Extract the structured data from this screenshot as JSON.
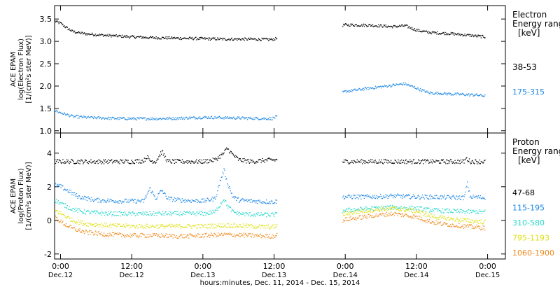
{
  "figure": {
    "xlabel": "hours:minutes, Dec. 11, 2014 - Dec. 15, 2014",
    "x_ticks": [
      {
        "time": "0:00",
        "date": "Dec.12",
        "hour": 0
      },
      {
        "time": "12:00",
        "date": "Dec.12",
        "hour": 12
      },
      {
        "time": "0:00",
        "date": "Dec.13",
        "hour": 24
      },
      {
        "time": "12:00",
        "date": "Dec.13",
        "hour": 36
      },
      {
        "time": "0:00",
        "date": "Dec.14",
        "hour": 48
      },
      {
        "time": "12:00",
        "date": "Dec.14",
        "hour": 60
      },
      {
        "time": "0:00",
        "date": "Dec.15",
        "hour": 72
      }
    ]
  },
  "chart_data": [
    {
      "type": "scatter",
      "panel": "electron",
      "ylabel_lines": [
        "ACE EPAM",
        "log(Electron Flux)",
        "[1/(cm²s ster MeV)]"
      ],
      "legend_title_lines": [
        "Electron",
        "Energy range",
        "[keV]"
      ],
      "x_unit": "hours since Dec.12 0:00",
      "xlim": [
        -1,
        75
      ],
      "ylim": [
        0.95,
        3.8
      ],
      "y_ticks": [
        "1.0",
        "1.5",
        "2.0",
        "2.5",
        "3.0",
        "3.5"
      ],
      "y_tick_values": [
        1.0,
        1.5,
        2.0,
        2.5,
        3.0,
        3.5
      ],
      "series": [
        {
          "name": "38-53",
          "color": "#000000",
          "x": [
            -1,
            0,
            1,
            2,
            4,
            8,
            12,
            16,
            20,
            24,
            28,
            32,
            35.5,
            48,
            52,
            56,
            58,
            60,
            62,
            66,
            70,
            71.5
          ],
          "y": [
            3.45,
            3.4,
            3.3,
            3.22,
            3.17,
            3.13,
            3.1,
            3.08,
            3.07,
            3.06,
            3.05,
            3.05,
            3.04,
            3.37,
            3.36,
            3.33,
            3.35,
            3.25,
            3.2,
            3.17,
            3.12,
            3.1
          ]
        },
        {
          "name": "175-315",
          "color": "#1e88e5",
          "x": [
            -1,
            0,
            2,
            4,
            8,
            12,
            16,
            20,
            24,
            28,
            32,
            35.5,
            48,
            52,
            56,
            58,
            60,
            62,
            66,
            70,
            71.5
          ],
          "y": [
            1.45,
            1.4,
            1.32,
            1.3,
            1.28,
            1.27,
            1.27,
            1.28,
            1.3,
            1.29,
            1.28,
            1.27,
            1.88,
            1.95,
            2.02,
            2.05,
            1.95,
            1.85,
            1.82,
            1.8,
            1.78
          ]
        }
      ]
    },
    {
      "type": "scatter",
      "panel": "proton",
      "ylabel_lines": [
        "ACE EPAM",
        "log(Proton Flux)",
        "[1/(cm²s ster MeV)]"
      ],
      "legend_title_lines": [
        "Proton",
        "Energy range",
        "[keV]"
      ],
      "x_unit": "hours since Dec.12 0:00",
      "xlim": [
        -1,
        75
      ],
      "ylim": [
        -2.3,
        5.2
      ],
      "y_ticks": [
        "-2",
        "0",
        "2",
        "4"
      ],
      "y_tick_values": [
        -2,
        0,
        2,
        4
      ],
      "series": [
        {
          "name": "47-68",
          "color": "#000000",
          "x": [
            -1,
            4,
            8,
            12,
            14,
            14.5,
            15,
            16,
            17,
            18,
            20,
            24,
            26,
            27.5,
            28,
            29,
            30,
            32,
            35.5,
            48,
            56,
            64,
            68,
            68.3,
            69,
            71.5
          ],
          "y": [
            3.5,
            3.5,
            3.5,
            3.5,
            3.55,
            3.8,
            3.55,
            3.5,
            4.1,
            3.5,
            3.5,
            3.5,
            3.6,
            4.0,
            4.3,
            3.9,
            3.6,
            3.5,
            3.6,
            3.5,
            3.5,
            3.5,
            3.5,
            3.7,
            3.5,
            3.5
          ]
        },
        {
          "name": "115-195",
          "color": "#1e88e5",
          "x": [
            -1,
            0,
            1,
            3,
            6,
            10,
            14,
            15,
            16,
            17,
            18,
            20,
            24,
            26,
            27,
            27.5,
            28,
            29,
            30,
            32,
            35.5,
            48,
            52,
            56,
            60,
            64,
            68,
            68.5,
            69,
            71.5
          ],
          "y": [
            2.1,
            2.0,
            1.8,
            1.4,
            1.2,
            1.15,
            1.15,
            1.9,
            1.3,
            1.8,
            1.3,
            1.2,
            1.15,
            1.3,
            2.5,
            3.0,
            2.3,
            1.4,
            1.2,
            1.15,
            1.1,
            1.4,
            1.4,
            1.45,
            1.4,
            1.38,
            1.35,
            2.2,
            1.4,
            1.35
          ]
        },
        {
          "name": "310-580",
          "color": "#26d9cc",
          "x": [
            -1,
            0,
            2,
            4,
            8,
            12,
            16,
            20,
            24,
            26,
            27.5,
            28,
            29,
            30,
            32,
            35.5,
            48,
            52,
            56,
            60,
            62,
            64,
            68,
            71.5
          ],
          "y": [
            1.2,
            1.0,
            0.65,
            0.5,
            0.4,
            0.38,
            0.4,
            0.4,
            0.4,
            0.5,
            1.3,
            0.9,
            0.5,
            0.4,
            0.35,
            0.33,
            0.6,
            0.7,
            0.78,
            0.72,
            0.62,
            0.58,
            0.52,
            0.5
          ]
        },
        {
          "name": "795-1193",
          "color": "#dede10",
          "x": [
            -1,
            0,
            2,
            4,
            8,
            12,
            16,
            20,
            24,
            28,
            32,
            35.5,
            48,
            52,
            56,
            60,
            62,
            64,
            68,
            71.5
          ],
          "y": [
            0.6,
            0.4,
            0.0,
            -0.2,
            -0.3,
            -0.35,
            -0.35,
            -0.35,
            -0.35,
            -0.3,
            -0.35,
            -0.4,
            0.4,
            0.6,
            0.7,
            0.55,
            0.3,
            0.15,
            0.0,
            -0.1
          ]
        },
        {
          "name": "1060-1900",
          "color": "#ef8a1c",
          "x": [
            -1,
            0,
            2,
            4,
            8,
            12,
            16,
            20,
            24,
            28,
            32,
            35.5,
            48,
            52,
            56,
            60,
            62,
            64,
            68,
            71.5
          ],
          "y": [
            0.2,
            -0.1,
            -0.5,
            -0.7,
            -0.85,
            -0.9,
            -0.9,
            -0.95,
            -0.9,
            -0.85,
            -0.9,
            -0.95,
            0.05,
            0.25,
            0.4,
            0.2,
            -0.05,
            -0.2,
            -0.35,
            -0.45
          ]
        }
      ]
    }
  ]
}
